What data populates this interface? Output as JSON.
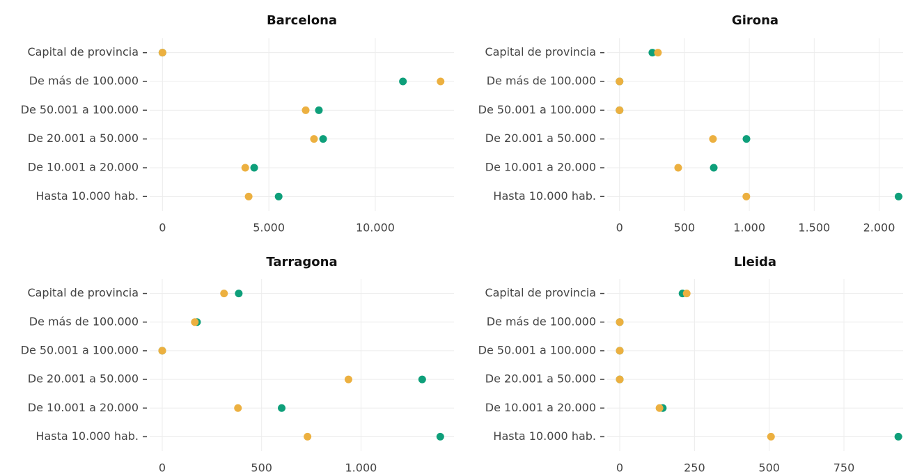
{
  "chart_data": [
    {
      "type": "dot",
      "title": "Barcelona",
      "categories": [
        "Capital de provincia",
        "De más de 100.000",
        "De 50.001 a 100.000",
        "De 20.001 a 50.000",
        "De 10.001 a 20.000",
        "Hasta 10.000 hab."
      ],
      "series": [
        {
          "color": "#0e9f7a",
          "values": [
            0,
            11300,
            7350,
            7550,
            4310,
            5460
          ]
        },
        {
          "color": "#ecb040",
          "values": [
            0,
            13070,
            6730,
            7120,
            3890,
            4050
          ]
        }
      ],
      "xlim": [
        -600,
        13700
      ],
      "xticks": [
        0,
        {
          "value": 5000,
          "label": "5.000"
        },
        {
          "value": 10000,
          "label": "10.000"
        }
      ]
    },
    {
      "type": "dot",
      "title": "Girona",
      "categories": [
        "Capital de provincia",
        "De más de 100.000",
        "De 50.001 a 100.000",
        "De 20.001 a 50.000",
        "De 10.001 a 20.000",
        "Hasta 10.000 hab."
      ],
      "series": [
        {
          "color": "#0e9f7a",
          "values": [
            253,
            0,
            0,
            978,
            726,
            2150
          ]
        },
        {
          "color": "#ecb040",
          "values": [
            296,
            0,
            0,
            720,
            452,
            977
          ]
        }
      ],
      "xlim": [
        -95,
        2185
      ],
      "xticks": [
        0,
        500,
        {
          "value": 1000,
          "label": "1.000"
        },
        {
          "value": 1500,
          "label": "1.500"
        },
        {
          "value": 2000,
          "label": "2.000"
        }
      ]
    },
    {
      "type": "dot",
      "title": "Tarragona",
      "categories": [
        "Capital de provincia",
        "De más de 100.000",
        "De 50.001 a 100.000",
        "De 20.001 a 50.000",
        "De 10.001 a 20.000",
        "Hasta 10.000 hab."
      ],
      "series": [
        {
          "color": "#0e9f7a",
          "values": [
            385,
            175,
            0,
            1308,
            601,
            1399
          ]
        },
        {
          "color": "#ecb040",
          "values": [
            311,
            164,
            0,
            937,
            381,
            731
          ]
        }
      ],
      "xlim": [
        -63,
        1468
      ],
      "xticks": [
        0,
        500,
        {
          "value": 1000,
          "label": "1.000"
        }
      ]
    },
    {
      "type": "dot",
      "title": "Lleida",
      "categories": [
        "Capital de provincia",
        "De más de 100.000",
        "De 50.001 a 100.000",
        "De 20.001 a 50.000",
        "De 10.001 a 20.000",
        "Hasta 10.000 hab."
      ],
      "series": [
        {
          "color": "#0e9f7a",
          "values": [
            210,
            0,
            0,
            0,
            144,
            932
          ]
        },
        {
          "color": "#ecb040",
          "values": [
            224,
            0,
            0,
            0,
            133,
            506
          ]
        }
      ],
      "xlim": [
        -42,
        948
      ],
      "xticks": [
        0,
        250,
        500,
        750
      ]
    }
  ]
}
